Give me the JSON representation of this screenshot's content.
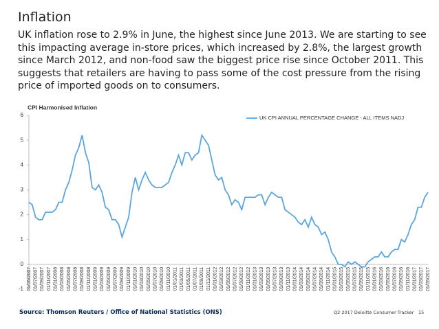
{
  "header": {
    "title": "Inflation",
    "text": "UK inflation rose to 2.9% in June, the highest since June 2013. We are starting to see this impacting average in-store prices, which increased by 2.8%, the largest growth since March 2012, and non-food saw the biggest price rise since October 2011. This suggests that retailers are having to pass some of the cost pressure from the rising price of imported goods on to consumers."
  },
  "chart_data": {
    "type": "line",
    "title": "CPI Harmonised Inflation",
    "categories": [
      "01/05/2007",
      null,
      "01/07/2007",
      null,
      "01/09/2007",
      null,
      "01/11/2007",
      null,
      "01/01/2008",
      null,
      "01/03/2008",
      null,
      "01/05/2008",
      null,
      "01/07/2008",
      null,
      "01/09/2008",
      null,
      "01/11/2008",
      null,
      "01/01/2009",
      null,
      "01/03/2009",
      null,
      "01/05/2009",
      null,
      "01/07/2009",
      null,
      "01/09/2009",
      null,
      "01/11/2009",
      null,
      "01/01/2010",
      null,
      "01/03/2010",
      null,
      "01/05/2010",
      null,
      "01/07/2010",
      null,
      "01/09/2010",
      null,
      "01/11/2010",
      null,
      "01/01/2011",
      null,
      "01/03/2011",
      null,
      "01/05/2011",
      null,
      "01/07/2011",
      null,
      "01/09/2011",
      null,
      "01/11/2011",
      null,
      "01/01/2012",
      null,
      "01/03/2012",
      null,
      "01/05/2012",
      null,
      "01/07/2012",
      null,
      "01/09/2012",
      null,
      "01/11/2012",
      null,
      "01/01/2013",
      null,
      "01/03/2013",
      null,
      "01/05/2013",
      null,
      "01/07/2013",
      null,
      "01/09/2013",
      null,
      "01/11/2013",
      null,
      "01/01/2014",
      null,
      "01/03/2014",
      null,
      "01/05/2014",
      null,
      "01/07/2014",
      null,
      "01/09/2014",
      null,
      "01/11/2014",
      null,
      "01/01/2015",
      null,
      "01/03/2015",
      null,
      "01/05/2015",
      null,
      "01/07/2015",
      null,
      "01/09/2015",
      null,
      "01/11/2015",
      null,
      "01/01/2016",
      null,
      "01/03/2016",
      null,
      "01/05/2016",
      null,
      "01/07/2016",
      null,
      "01/09/2016",
      null,
      "01/11/2016",
      null,
      "01/01/2017",
      null,
      "01/03/2017",
      null,
      "01/05/2017"
    ],
    "series": [
      {
        "name": "UK CPI ANNUAL PERCENTAGE CHANGE - ALL ITEMS NADJ",
        "color": "#5aa6dc",
        "values": [
          2.5,
          2.4,
          1.9,
          1.8,
          1.8,
          2.1,
          2.1,
          2.1,
          2.2,
          2.5,
          2.5,
          3.0,
          3.3,
          3.8,
          4.4,
          4.7,
          5.2,
          4.5,
          4.1,
          3.1,
          3.0,
          3.2,
          2.9,
          2.3,
          2.2,
          1.8,
          1.8,
          1.6,
          1.1,
          1.5,
          1.9,
          2.9,
          3.5,
          3.0,
          3.4,
          3.7,
          3.4,
          3.2,
          3.1,
          3.1,
          3.1,
          3.2,
          3.3,
          3.7,
          4.0,
          4.4,
          4.0,
          4.5,
          4.5,
          4.2,
          4.4,
          4.5,
          5.2,
          5.0,
          4.8,
          4.2,
          3.6,
          3.4,
          3.5,
          3.0,
          2.8,
          2.4,
          2.6,
          2.5,
          2.2,
          2.7,
          2.7,
          2.7,
          2.7,
          2.8,
          2.8,
          2.4,
          2.7,
          2.9,
          2.8,
          2.7,
          2.7,
          2.2,
          2.1,
          2.0,
          1.9,
          1.7,
          1.6,
          1.8,
          1.5,
          1.9,
          1.6,
          1.5,
          1.2,
          1.3,
          1.0,
          0.5,
          0.3,
          0.0,
          0.0,
          -0.1,
          0.1,
          0.0,
          0.1,
          0.0,
          -0.1,
          -0.1,
          0.1,
          0.2,
          0.3,
          0.3,
          0.5,
          0.3,
          0.3,
          0.5,
          0.6,
          0.6,
          1.0,
          0.9,
          1.2,
          1.6,
          1.8,
          2.3,
          2.3,
          2.7,
          2.9
        ]
      }
    ],
    "ylim": [
      -1,
      6
    ],
    "yticks": [
      -1,
      0,
      1,
      2,
      3,
      4,
      5,
      6
    ],
    "grid": false,
    "legend": "top-right"
  },
  "footer": {
    "source": "Source: Thomson Reuters / Office of National Statistics (ONS)",
    "tracker": "Q2 2017 Deloitte Consumer Tracker",
    "page": "15"
  }
}
